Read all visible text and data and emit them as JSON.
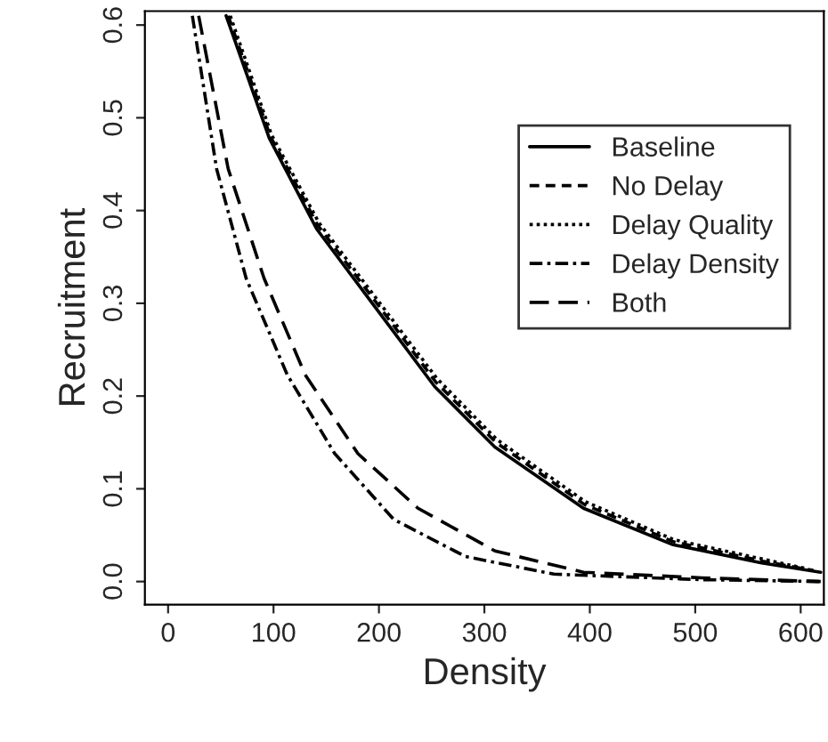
{
  "chart_data": {
    "type": "line",
    "xlabel": "Density",
    "ylabel": "Recruitment",
    "xlim": [
      -22,
      622
    ],
    "ylim": [
      -0.025,
      0.615
    ],
    "xticks": [
      0,
      100,
      200,
      300,
      400,
      500,
      600
    ],
    "yticks": [
      {
        "value": 0,
        "label": "0.0"
      },
      0.1,
      0.2,
      0.3,
      0.4,
      0.5,
      0.6
    ],
    "grid": false,
    "legend": "top right",
    "marker": "none",
    "series": [
      {
        "name": "Baseline",
        "color": "#000000",
        "line_style": "solid",
        "x": [
          55,
          96,
          141,
          197,
          253,
          310,
          394,
          478,
          563,
          619
        ],
        "values": [
          0.61,
          0.478,
          0.38,
          0.295,
          0.21,
          0.145,
          0.079,
          0.04,
          0.02,
          0.01
        ]
      },
      {
        "name": "No Delay",
        "color": "#000000",
        "line_style": "dashed",
        "x": [
          57,
          97,
          142,
          198,
          254,
          311,
          395,
          479,
          564,
          612
        ],
        "values": [
          0.61,
          0.48,
          0.384,
          0.3,
          0.215,
          0.15,
          0.083,
          0.043,
          0.022,
          0.012
        ]
      },
      {
        "name": "Delay Quality",
        "color": "#000000",
        "line_style": "dotted",
        "x": [
          59,
          98,
          143,
          199,
          255,
          312,
          396,
          480,
          565,
          605
        ],
        "values": [
          0.61,
          0.482,
          0.387,
          0.303,
          0.219,
          0.153,
          0.086,
          0.045,
          0.024,
          0.014
        ]
      },
      {
        "name": "Delay Density",
        "color": "#000000",
        "line_style": "dashdot",
        "x": [
          23,
          46,
          74,
          113,
          158,
          214,
          282,
          366,
          506,
          619
        ],
        "values": [
          0.61,
          0.445,
          0.327,
          0.223,
          0.138,
          0.067,
          0.027,
          0.008,
          0.002,
          0.0
        ]
      },
      {
        "name": "Both",
        "color": "#000000",
        "line_style": "longdash",
        "x": [
          29,
          57,
          91,
          130,
          180,
          237,
          310,
          394,
          506,
          619
        ],
        "values": [
          0.61,
          0.445,
          0.327,
          0.223,
          0.138,
          0.079,
          0.033,
          0.01,
          0.004,
          0.0
        ]
      }
    ]
  }
}
